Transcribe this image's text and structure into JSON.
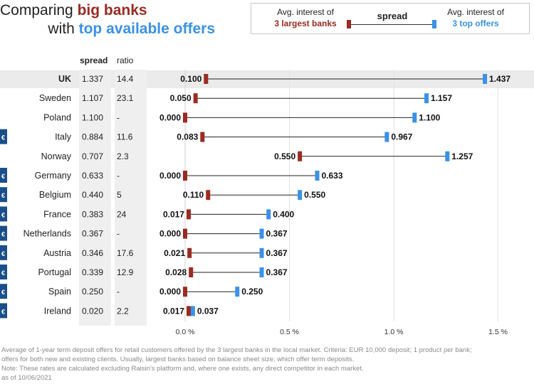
{
  "title": {
    "line1_prefix": "Comparing ",
    "line1_highlight": "big banks",
    "line2_prefix": "with ",
    "line2_highlight": "top available offers"
  },
  "legend": {
    "left_line1": "Avg. interest of",
    "left_line2": "3 largest banks",
    "middle": "spread",
    "right_line1": "Avg. interest of",
    "right_line2": "3 top offers"
  },
  "columns": {
    "spread": "spread",
    "ratio": "ratio"
  },
  "colors": {
    "big_banks": "#9b2b22",
    "top_offers": "#3a91e8",
    "euro_badge": "#1a4f8b"
  },
  "euro_symbol": "€",
  "chart_data": {
    "type": "dumbbell",
    "x_tick_labels": [
      "0.0 %",
      "0.5 %",
      "1.0 %",
      "1.5 %"
    ],
    "x_ticks": [
      0,
      0.5,
      1.0,
      1.5
    ],
    "xlim": [
      0,
      1.55
    ],
    "grid": true,
    "rows": [
      {
        "country": "UK",
        "spread": "1.337",
        "ratio": "14.4",
        "big": 0.1,
        "top": 1.437,
        "big_label": "0.100",
        "top_label": "1.437",
        "euro": false,
        "highlight": true
      },
      {
        "country": "Sweden",
        "spread": "1.107",
        "ratio": "23.1",
        "big": 0.05,
        "top": 1.157,
        "big_label": "0.050",
        "top_label": "1.157",
        "euro": false
      },
      {
        "country": "Poland",
        "spread": "1.100",
        "ratio": "-",
        "big": 0.0,
        "top": 1.1,
        "big_label": "0.000",
        "top_label": "1.100",
        "euro": false
      },
      {
        "country": "Italy",
        "spread": "0.884",
        "ratio": "11.6",
        "big": 0.083,
        "top": 0.967,
        "big_label": "0.083",
        "top_label": "0.967",
        "euro": true
      },
      {
        "country": "Norway",
        "spread": "0.707",
        "ratio": "2.3",
        "big": 0.55,
        "top": 1.257,
        "big_label": "0.550",
        "top_label": "1.257",
        "euro": false
      },
      {
        "country": "Germany",
        "spread": "0.633",
        "ratio": "-",
        "big": 0.0,
        "top": 0.633,
        "big_label": "0.000",
        "top_label": "0.633",
        "euro": true
      },
      {
        "country": "Belgium",
        "spread": "0.440",
        "ratio": "5",
        "big": 0.11,
        "top": 0.55,
        "big_label": "0.110",
        "top_label": "0.550",
        "euro": true
      },
      {
        "country": "France",
        "spread": "0.383",
        "ratio": "24",
        "big": 0.017,
        "top": 0.4,
        "big_label": "0.017",
        "top_label": "0.400",
        "euro": true
      },
      {
        "country": "Netherlands",
        "spread": "0.367",
        "ratio": "-",
        "big": 0.0,
        "top": 0.367,
        "big_label": "0.000",
        "top_label": "0.367",
        "euro": true
      },
      {
        "country": "Austria",
        "spread": "0.346",
        "ratio": "17.6",
        "big": 0.021,
        "top": 0.367,
        "big_label": "0.021",
        "top_label": "0.367",
        "euro": true
      },
      {
        "country": "Portugal",
        "spread": "0.339",
        "ratio": "12.9",
        "big": 0.028,
        "top": 0.367,
        "big_label": "0.028",
        "top_label": "0.367",
        "euro": true
      },
      {
        "country": "Spain",
        "spread": "0.250",
        "ratio": "-",
        "big": 0.0,
        "top": 0.25,
        "big_label": "0.000",
        "top_label": "0.250",
        "euro": true
      },
      {
        "country": "Ireland",
        "spread": "0.020",
        "ratio": "2.2",
        "big": 0.017,
        "top": 0.037,
        "big_label": "0.017",
        "top_label": "0.037",
        "euro": true
      }
    ]
  },
  "footnote": {
    "line1": "Average of 1-year term deposit offers for retail customers offered by the 3 largest banks in the local market. Criteria: EUR 10,000 deposit; 1 product per bank;",
    "line2": "offers for both new and existing clients. Usually, largest banks based on balance sheet size, which offer term deposits.",
    "line3": "Note: These rates are calculated excluding Raisin's platform and, where one exists, any direct competitor in each market.",
    "line4": "as of 10/06/2021"
  }
}
